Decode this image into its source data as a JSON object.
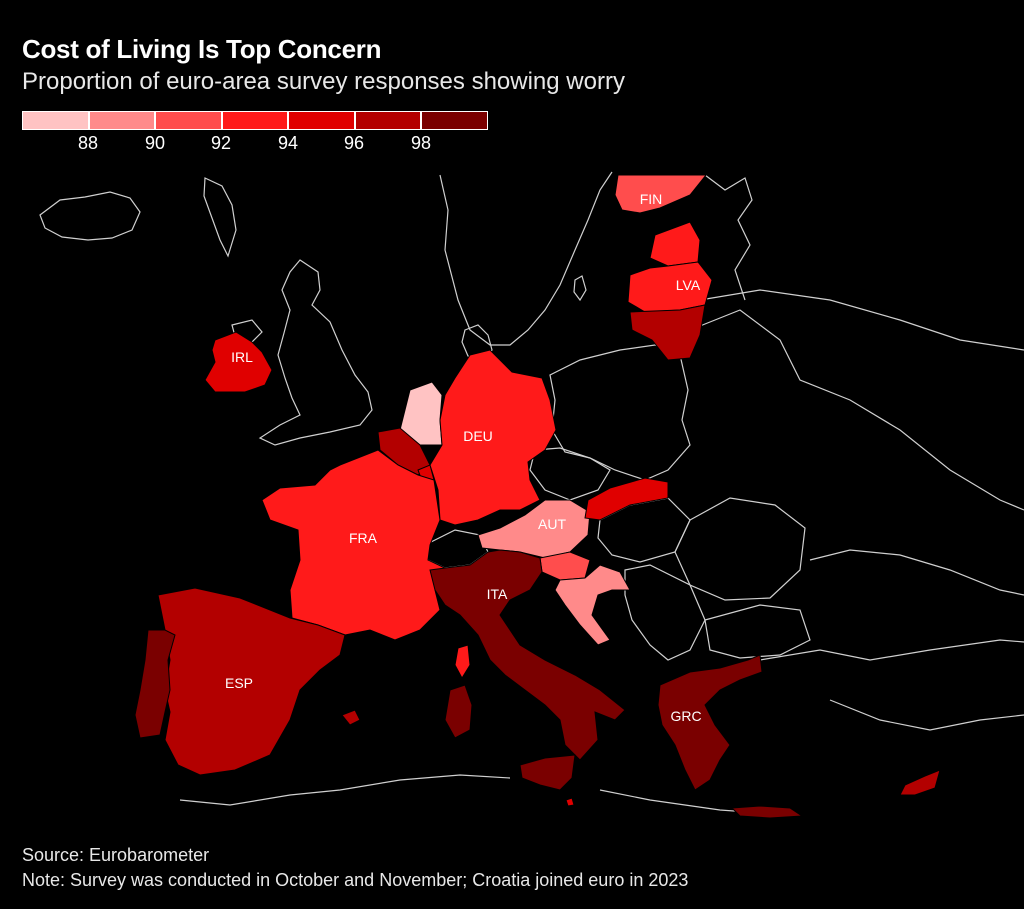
{
  "title": "Cost of Living Is Top Concern",
  "subtitle": "Proportion of euro-area survey responses showing worry",
  "legend": {
    "colors": [
      "#ffc3c3",
      "#ff8a8a",
      "#ff4d4d",
      "#ff1a1a",
      "#e00000",
      "#b30000",
      "#7a0000"
    ],
    "ticks": [
      "88",
      "90",
      "92",
      "94",
      "96",
      "98"
    ]
  },
  "countries": {
    "FIN": {
      "label": "FIN",
      "color": "#ff4d4d"
    },
    "LVA": {
      "label": "LVA",
      "color": "#ff1a1a"
    },
    "EST": {
      "color": "#ff1a1a"
    },
    "LTU": {
      "color": "#b30000"
    },
    "IRL": {
      "label": "IRL",
      "color": "#e00000"
    },
    "NLD": {
      "color": "#ffc3c3"
    },
    "BEL": {
      "color": "#b30000"
    },
    "LUX": {
      "color": "#e00000"
    },
    "DEU": {
      "label": "DEU",
      "color": "#ff1a1a"
    },
    "FRA": {
      "label": "FRA",
      "color": "#ff1a1a"
    },
    "AUT": {
      "label": "AUT",
      "color": "#ff8a8a"
    },
    "SVK": {
      "color": "#e00000"
    },
    "SVN": {
      "color": "#ff4d4d"
    },
    "HRV": {
      "color": "#ff8a8a"
    },
    "ITA": {
      "label": "ITA",
      "color": "#7a0000"
    },
    "ESP": {
      "label": "ESP",
      "color": "#b30000"
    },
    "PRT": {
      "color": "#7a0000"
    },
    "GRC": {
      "label": "GRC",
      "color": "#7a0000"
    },
    "CYP": {
      "color": "#b30000"
    },
    "MLT": {
      "color": "#e00000"
    }
  },
  "source": "Source: Eurobarometer",
  "note": "Note: Survey was conducted in October and November; Croatia joined euro in 2023"
}
